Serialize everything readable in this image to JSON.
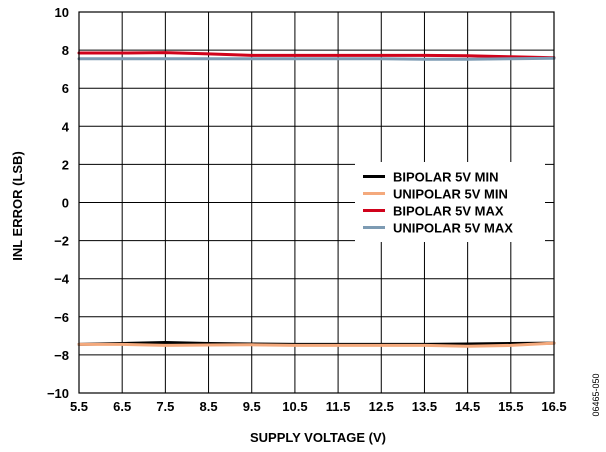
{
  "chart_data": {
    "type": "line",
    "title": "",
    "xlabel": "SUPPLY VOLTAGE (V)",
    "ylabel": "INL ERROR (LSB)",
    "xlim": [
      5.5,
      16.5
    ],
    "ylim": [
      -10,
      10
    ],
    "xticks": [
      "5.5",
      "6.5",
      "7.5",
      "8.5",
      "9.5",
      "10.5",
      "11.5",
      "12.5",
      "13.5",
      "14.5",
      "15.5",
      "16.5"
    ],
    "yticks": [
      "10",
      "8",
      "6",
      "4",
      "2",
      "0",
      "−2",
      "−4",
      "−6",
      "−8",
      "−10"
    ],
    "grid": true,
    "legend_position": "center-right",
    "x": [
      5.5,
      6.5,
      7.5,
      8.5,
      9.5,
      10.5,
      11.5,
      12.5,
      13.5,
      14.5,
      15.5,
      16.5
    ],
    "series": [
      {
        "name": "BIPOLAR 5V MIN",
        "color": "#000000",
        "values": [
          -7.45,
          -7.4,
          -7.35,
          -7.4,
          -7.43,
          -7.45,
          -7.45,
          -7.45,
          -7.45,
          -7.43,
          -7.4,
          -7.38
        ]
      },
      {
        "name": "UNIPOLAR 5V MIN",
        "color": "#f4a97c",
        "values": [
          -7.45,
          -7.45,
          -7.5,
          -7.48,
          -7.47,
          -7.5,
          -7.5,
          -7.5,
          -7.5,
          -7.55,
          -7.5,
          -7.38
        ]
      },
      {
        "name": "BIPOLAR 5V MAX",
        "color": "#d0021b",
        "values": [
          7.85,
          7.85,
          7.87,
          7.8,
          7.72,
          7.72,
          7.72,
          7.72,
          7.72,
          7.7,
          7.65,
          7.6
        ]
      },
      {
        "name": "UNIPOLAR 5V MAX",
        "color": "#7d9bb3",
        "values": [
          7.55,
          7.55,
          7.55,
          7.55,
          7.55,
          7.55,
          7.55,
          7.55,
          7.52,
          7.52,
          7.55,
          7.57
        ]
      }
    ]
  },
  "figure_code": "06465-050"
}
